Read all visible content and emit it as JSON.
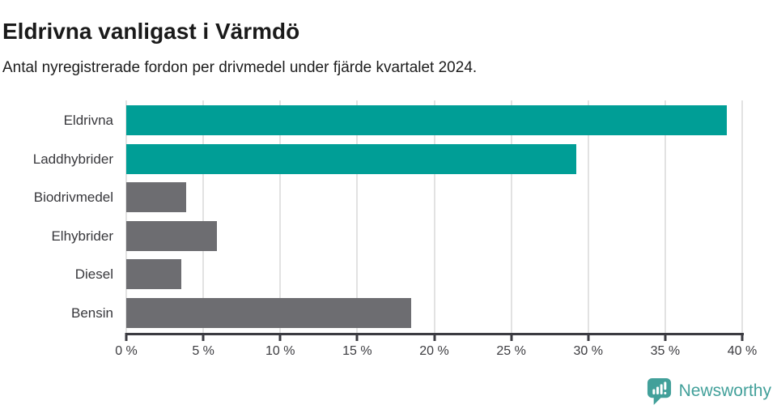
{
  "title": "Eldrivna vanligast i Värmdö",
  "subtitle": "Antal nyregistrerade fordon per drivmedel under fjärde kvartalet 2024.",
  "chart_data": {
    "type": "bar",
    "orientation": "horizontal",
    "title": "Eldrivna vanligast i Värmdö",
    "subtitle": "Antal nyregistrerade fordon per drivmedel under fjärde kvartalet 2024.",
    "categories": [
      "Eldrivna",
      "Laddhybrider",
      "Biodrivmedel",
      "Elhybrider",
      "Diesel",
      "Bensin"
    ],
    "values": [
      39.0,
      29.2,
      3.9,
      5.9,
      3.6,
      18.5
    ],
    "unit": "%",
    "xlabel": "",
    "ylabel": "",
    "xlim": [
      0,
      40
    ],
    "x_tick_values": [
      0,
      5,
      10,
      15,
      20,
      25,
      30,
      35,
      40
    ],
    "x_tick_labels": [
      "0 %",
      "5 %",
      "10 %",
      "15 %",
      "20 %",
      "25 %",
      "30 %",
      "35 %",
      "40 %"
    ],
    "grid": true,
    "legend": false,
    "bar_colors": [
      "#009e96",
      "#009e96",
      "#6d6d71",
      "#6d6d71",
      "#6d6d71",
      "#6d6d71"
    ],
    "highlight_color": "#009e96",
    "default_color": "#6d6d71",
    "gridline_color": "#e2e2e2",
    "axis_color": "#3b3b41"
  },
  "branding": {
    "logo_text": "Newsworthy",
    "logo_color": "#42a09a",
    "logo_icon": "newsworthy-speech-bubble-bar-chart"
  }
}
